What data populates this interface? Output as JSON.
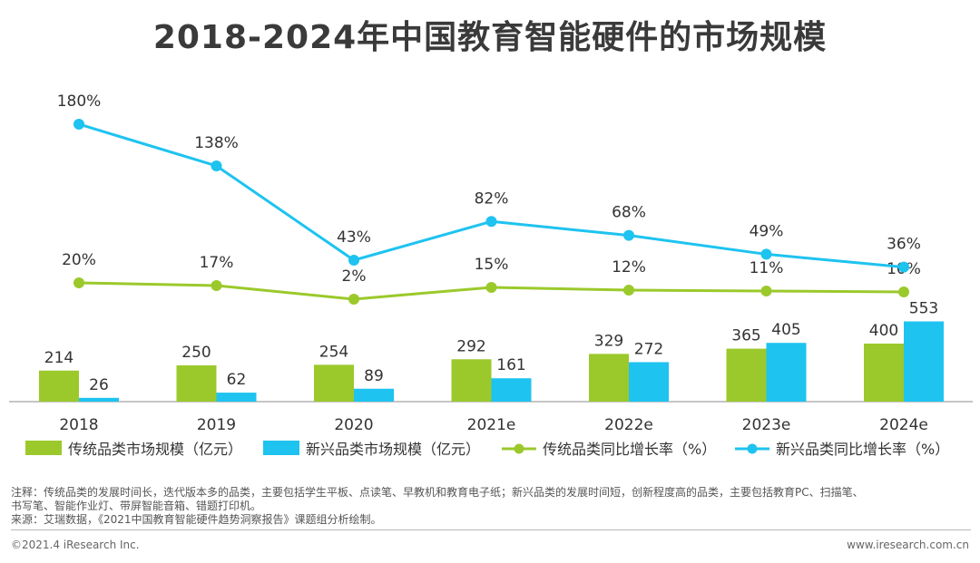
{
  "title": "2018-2024年中国教育智能硬件的市场规模",
  "chart_data": {
    "type": "bar+line",
    "categories": [
      "2018",
      "2019",
      "2020",
      "2021e",
      "2022e",
      "2023e",
      "2024e"
    ],
    "bar_series": [
      {
        "name": "传统品类市场规模（亿元）",
        "color": "#9bc92b",
        "values": [
          214,
          250,
          254,
          292,
          329,
          365,
          400
        ]
      },
      {
        "name": "新兴品类市场规模（亿元）",
        "color": "#1ec3f0",
        "values": [
          26,
          62,
          89,
          161,
          272,
          405,
          553
        ]
      }
    ],
    "line_series": [
      {
        "name": "传统品类同比增长率（%）",
        "color": "#9bc92b",
        "values": [
          20,
          17,
          2,
          15,
          12,
          11,
          10
        ],
        "labels": [
          "20%",
          "17%",
          "2%",
          "15%",
          "12%",
          "11%",
          "10%"
        ]
      },
      {
        "name": "新兴品类同比增长率（%）",
        "color": "#1ec3f0",
        "values": [
          180,
          138,
          43,
          82,
          68,
          49,
          36
        ],
        "labels": [
          "180%",
          "138%",
          "43%",
          "82%",
          "68%",
          "49%",
          "36%"
        ]
      }
    ],
    "legend_position": "bottom"
  },
  "notes": {
    "line1": "注释：传统品类的发展时间长，迭代版本多的品类，主要包括学生平板、点读笔、早教机和教育电子纸；新兴品类的发展时间短，创新程度高的品类，主要包括教育PC、扫描笔、",
    "line2": "书写笔、智能作业灯、带屏智能音箱、错题打印机。",
    "source": "来源：艾瑞数据，《2021中国教育智能硬件趋势洞察报告》课题组分析绘制。"
  },
  "footer": {
    "copyright": "©2021.4 iResearch Inc.",
    "website": "www.iresearch.com.cn"
  }
}
